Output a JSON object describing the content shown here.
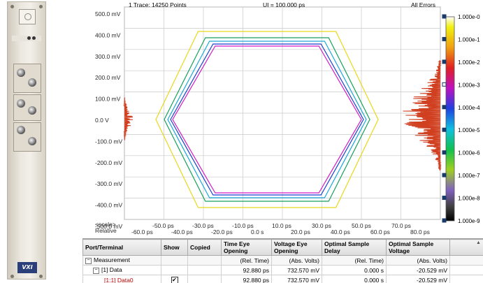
{
  "eye_panel": {
    "trace_info": "1 Trace: 14250 Points",
    "ui_info": "UI = 100.000 ps",
    "error_mode": "All Errors",
    "y_ticks": [
      "500.0 mV",
      "400.0 mV",
      "300.0 mV",
      "200.0 mV",
      "100.0 mV",
      "0.0 V",
      "-100.0 mV",
      "-200.0 mV",
      "-300.0 mV",
      "-400.0 mV",
      "-500.0 mV"
    ],
    "scale_label": "<scale>",
    "relative_label": "Relative",
    "x_ticks_upper": [
      "-50.0 ps",
      "-30.0 ps",
      "-10.0 ps",
      "10.0 ps",
      "30.0 ps",
      "50.0 ps",
      "70.0 ps"
    ],
    "x_ticks_lower": [
      "-60.0 ps",
      "-40.0 ps",
      "-20.0 ps",
      "0.0 s",
      "20.0 ps",
      "40.0 ps",
      "60.0 ps",
      "80.0 ps"
    ],
    "color_scale": [
      "1.000e-0",
      "1.000e-1",
      "1.000e-2",
      "1.000e-3",
      "1.000e-4",
      "1.000e-5",
      "1.000e-6",
      "1.000e-7",
      "1.000e-8",
      "1.000e-9"
    ],
    "contour_colors": [
      "#e8d81a",
      "#14a05a",
      "#1aa8d8",
      "#1a3fd0",
      "#d01ac8"
    ]
  },
  "table": {
    "headers": [
      "Port/Terminal",
      "Show",
      "Copied",
      "Time Eye Opening",
      "Voltage Eye Opening",
      "Optimal Sample Delay",
      "Optimal Sample Voltage"
    ],
    "rows": [
      {
        "label": "Measurement",
        "show": "",
        "copied": "",
        "time": "(Rel. Time)",
        "voltage": "(Abs. Volts)",
        "delay": "(Rel. Time)",
        "sample_voltage": "(Abs. Volts)"
      },
      {
        "label": "[1] Data",
        "show": "",
        "copied": "",
        "time": "92.880 ps",
        "voltage": "732.570 mV",
        "delay": "0.000 s",
        "sample_voltage": "-20.529 mV"
      },
      {
        "label": "[1:1] Data0",
        "show": "✔",
        "copied": "",
        "time": "92.880 ps",
        "voltage": "732.570 mV",
        "delay": "0.000 s",
        "sample_voltage": "-20.529 mV"
      }
    ]
  },
  "module": {
    "logo_text": "VXI"
  }
}
